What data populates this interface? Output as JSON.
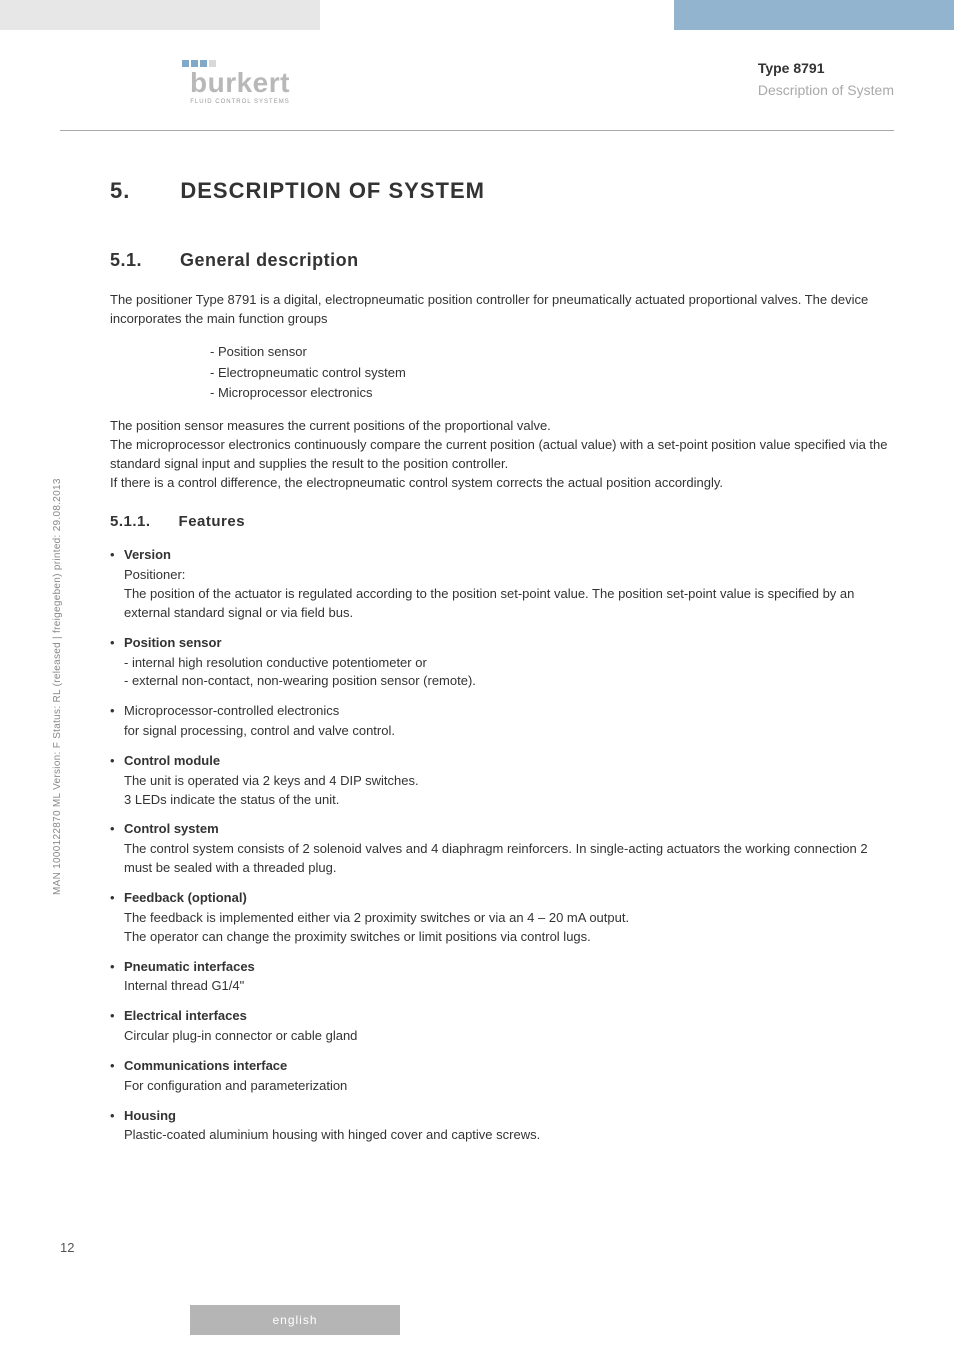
{
  "colors": {
    "header_gray": "#e7e7e7",
    "header_blue": "#93b4cf",
    "logo_gray": "#b8b8b8",
    "text": "#333333",
    "muted": "#a9a9a9",
    "rule": "#aaaaaa",
    "footer_band": "#b5b5b5"
  },
  "header": {
    "logo_text": "burkert",
    "logo_sub": "FLUID CONTROL SYSTEMS",
    "type_label": "Type 8791",
    "section_label": "Description of System"
  },
  "side_label": "MAN  1000122870  ML  Version: F  Status: RL (released | freigegeben)  printed: 29.08.2013",
  "page_number": "12",
  "footer_lang": "english",
  "h1": {
    "num": "5.",
    "title": "DESCRIPTION OF SYSTEM"
  },
  "h2": {
    "num": "5.1.",
    "title": "General description"
  },
  "intro_para": "The positioner Type 8791 is a digital, electropneumatic position controller for pneumatically actuated proportional valves. The device incorporates the main function groups",
  "intro_list": [
    "- Position sensor",
    "- Electropneumatic control system",
    "- Microprocessor electronics"
  ],
  "desc_lines": [
    "The position sensor measures the current positions of the proportional valve.",
    "The microprocessor electronics continuously compare the current position (actual value) with a set-point position value specified via the standard signal input and supplies the result to the position controller.",
    "If there is a control difference, the electropneumatic control system corrects the actual position accordingly."
  ],
  "h3": {
    "num": "5.1.1.",
    "title": "Features"
  },
  "features": [
    {
      "head": "Version",
      "body": [
        "Positioner:",
        "The position of the actuator is regulated according to the position set-point value. The position set-point value is specified by an external standard signal or via field bus."
      ]
    },
    {
      "head": "Position sensor",
      "body": [
        "- internal high resolution conductive potentiometer or",
        "- external non-contact, non-wearing position sensor (remote)."
      ]
    },
    {
      "head_plain": "Microprocessor-controlled electronics",
      "body": [
        "for signal processing, control and valve control."
      ]
    },
    {
      "head": "Control module",
      "body": [
        "The unit is operated via 2 keys and 4 DIP switches.",
        "3 LEDs indicate the status of the unit."
      ]
    },
    {
      "head": "Control system",
      "body": [
        "The control system consists of 2 solenoid valves and 4 diaphragm reinforcers. In single-acting actuators the working connection 2 must be sealed with a threaded plug."
      ]
    },
    {
      "head": "Feedback (optional)",
      "body": [
        "The feedback is implemented either via 2 proximity switches or via an 4 – 20 mA output.",
        "The operator can change the proximity switches or limit positions via control lugs."
      ]
    },
    {
      "head": "Pneumatic interfaces",
      "body": [
        "Internal thread G1/4\""
      ]
    },
    {
      "head": "Electrical interfaces",
      "body": [
        "Circular plug-in connector or cable gland"
      ]
    },
    {
      "head": "Communications interface",
      "body": [
        "For configuration and parameterization"
      ]
    },
    {
      "head": "Housing",
      "body": [
        "Plastic-coated aluminium housing with hinged cover and captive screws."
      ]
    }
  ]
}
